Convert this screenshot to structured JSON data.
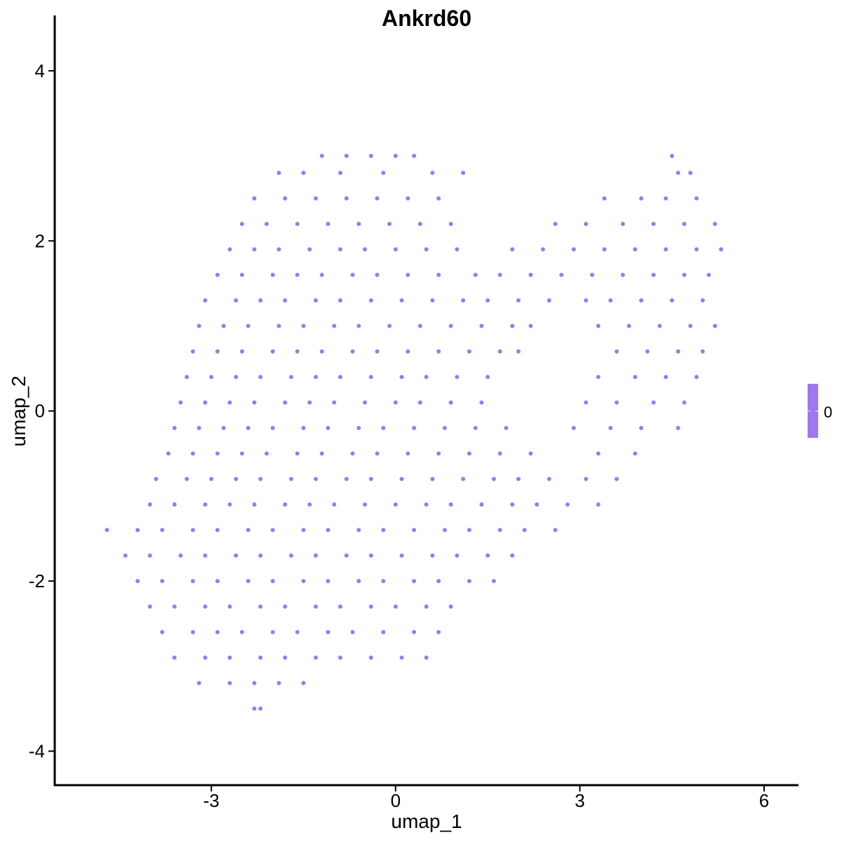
{
  "chart_data": {
    "type": "scatter",
    "title": "Ankrd60",
    "xlabel": "umap_1",
    "ylabel": "umap_2",
    "xlim": [
      -5.55,
      6.56
    ],
    "ylim": [
      -4.4,
      4.42
    ],
    "xticks": [
      -3,
      0,
      3,
      6
    ],
    "xtick_labels": [
      "-3",
      "0",
      "3",
      "6"
    ],
    "yticks": [
      -4,
      -2,
      0,
      2,
      4
    ],
    "ytick_labels": [
      "-4",
      "-2",
      "0",
      "2",
      "4"
    ],
    "grid": false,
    "point_color": "#9E79EC",
    "legend": {
      "placement": "right",
      "type": "colorbar",
      "labels": [
        "0"
      ],
      "color": "#9E79EC"
    },
    "rows": [
      {
        "y": 3.0,
        "x": [
          -1.2,
          -0.8,
          -0.4,
          0,
          0.3,
          4.5
        ]
      },
      {
        "y": 2.8,
        "x": [
          -1.9,
          -1.5,
          -0.9,
          -0.2,
          0.6,
          1.1,
          4.6,
          4.8
        ]
      },
      {
        "y": 2.5,
        "x": [
          -2.3,
          -1.8,
          -1.3,
          -0.8,
          -0.3,
          0.2,
          0.7,
          3.4,
          4.0,
          4.4,
          4.9
        ]
      },
      {
        "y": 2.2,
        "x": [
          -2.5,
          -2.1,
          -1.6,
          -1.1,
          -0.6,
          -0.1,
          0.4,
          0.9,
          2.6,
          3.1,
          3.7,
          4.2,
          4.7,
          5.2
        ]
      },
      {
        "y": 1.9,
        "x": [
          -2.7,
          -2.3,
          -1.9,
          -1.4,
          -0.9,
          -0.5,
          0,
          0.5,
          1.0,
          1.9,
          2.4,
          2.9,
          3.4,
          3.9,
          4.4,
          4.9,
          5.3
        ]
      },
      {
        "y": 1.6,
        "x": [
          -2.9,
          -2.5,
          -2.0,
          -1.6,
          -1.2,
          -0.7,
          -0.3,
          0.2,
          0.7,
          1.3,
          1.7,
          2.2,
          2.7,
          3.2,
          3.7,
          4.2,
          4.7,
          5.1
        ]
      },
      {
        "y": 1.3,
        "x": [
          -3.1,
          -2.6,
          -2.2,
          -1.8,
          -1.3,
          -0.9,
          -0.4,
          0.1,
          0.6,
          1.1,
          1.5,
          2.0,
          2.5,
          3.1,
          3.5,
          4.0,
          4.5,
          5.0
        ]
      },
      {
        "y": 1.0,
        "x": [
          -3.2,
          -2.8,
          -2.4,
          -1.9,
          -1.5,
          -1.0,
          -0.6,
          -0.1,
          0.4,
          0.9,
          1.4,
          1.9,
          2.2,
          3.3,
          3.8,
          4.3,
          4.8,
          5.2
        ]
      },
      {
        "y": 0.7,
        "x": [
          -3.3,
          -2.9,
          -2.5,
          -2.0,
          -1.6,
          -1.2,
          -0.7,
          -0.3,
          0.2,
          0.7,
          1.2,
          1.7,
          2.0,
          3.6,
          4.1,
          4.6,
          5.0
        ]
      },
      {
        "y": 0.4,
        "x": [
          -3.4,
          -3.0,
          -2.6,
          -2.2,
          -1.7,
          -1.3,
          -0.9,
          -0.4,
          0.1,
          0.5,
          1.0,
          1.5,
          3.3,
          3.9,
          4.4,
          4.9
        ]
      },
      {
        "y": 0.1,
        "x": [
          -3.5,
          -3.1,
          -2.7,
          -2.3,
          -1.8,
          -1.4,
          -1.0,
          -0.5,
          0,
          0.4,
          0.9,
          1.4,
          3.1,
          3.6,
          4.2,
          4.7
        ]
      },
      {
        "y": -0.2,
        "x": [
          -3.6,
          -3.2,
          -2.8,
          -2.4,
          -2.0,
          -1.5,
          -1.1,
          -0.6,
          -0.2,
          0.3,
          0.8,
          1.3,
          1.8,
          2.9,
          3.5,
          4.0,
          4.6
        ]
      },
      {
        "y": -0.5,
        "x": [
          -3.7,
          -3.3,
          -2.9,
          -2.5,
          -2.1,
          -1.6,
          -1.2,
          -0.7,
          -0.3,
          0.2,
          0.7,
          1.2,
          1.7,
          2.2,
          3.3,
          3.9
        ]
      },
      {
        "y": -0.8,
        "x": [
          -3.9,
          -3.4,
          -3.0,
          -2.6,
          -2.2,
          -1.7,
          -1.3,
          -0.8,
          -0.4,
          0.1,
          0.6,
          1.1,
          1.6,
          2.0,
          2.5,
          3.1,
          3.6
        ]
      },
      {
        "y": -1.1,
        "x": [
          -4.0,
          -3.6,
          -3.1,
          -2.7,
          -2.3,
          -1.8,
          -1.4,
          -1.0,
          -0.5,
          0,
          0.5,
          0.9,
          1.4,
          1.9,
          2.3,
          2.8,
          3.3
        ]
      },
      {
        "y": -1.4,
        "x": [
          -4.7,
          -4.2,
          -3.8,
          -3.3,
          -2.9,
          -2.4,
          -2.0,
          -1.5,
          -1.1,
          -0.6,
          -0.2,
          0.3,
          0.8,
          1.2,
          1.7,
          2.1,
          2.6
        ]
      },
      {
        "y": -1.7,
        "x": [
          -4.4,
          -4.0,
          -3.5,
          -3.1,
          -2.6,
          -2.2,
          -1.7,
          -1.3,
          -0.8,
          -0.4,
          0.1,
          0.6,
          1.0,
          1.5,
          1.9
        ]
      },
      {
        "y": -2.0,
        "x": [
          -4.2,
          -3.8,
          -3.3,
          -2.9,
          -2.4,
          -2.0,
          -1.5,
          -1.1,
          -0.6,
          -0.2,
          0.3,
          0.7,
          1.2,
          1.6
        ]
      },
      {
        "y": -2.3,
        "x": [
          -4.0,
          -3.6,
          -3.1,
          -2.7,
          -2.2,
          -1.8,
          -1.3,
          -0.9,
          -0.4,
          0,
          0.5,
          0.9
        ]
      },
      {
        "y": -2.6,
        "x": [
          -3.8,
          -3.3,
          -2.9,
          -2.5,
          -2.0,
          -1.6,
          -1.1,
          -0.7,
          -0.2,
          0.3,
          0.7
        ]
      },
      {
        "y": -2.9,
        "x": [
          -3.6,
          -3.1,
          -2.7,
          -2.2,
          -1.8,
          -1.3,
          -0.9,
          -0.4,
          0.1,
          0.5
        ]
      },
      {
        "y": -3.2,
        "x": [
          -3.2,
          -2.7,
          -2.3,
          -1.9,
          -1.5
        ]
      },
      {
        "y": -3.5,
        "x": [
          -2.3,
          -2.2
        ]
      }
    ]
  }
}
